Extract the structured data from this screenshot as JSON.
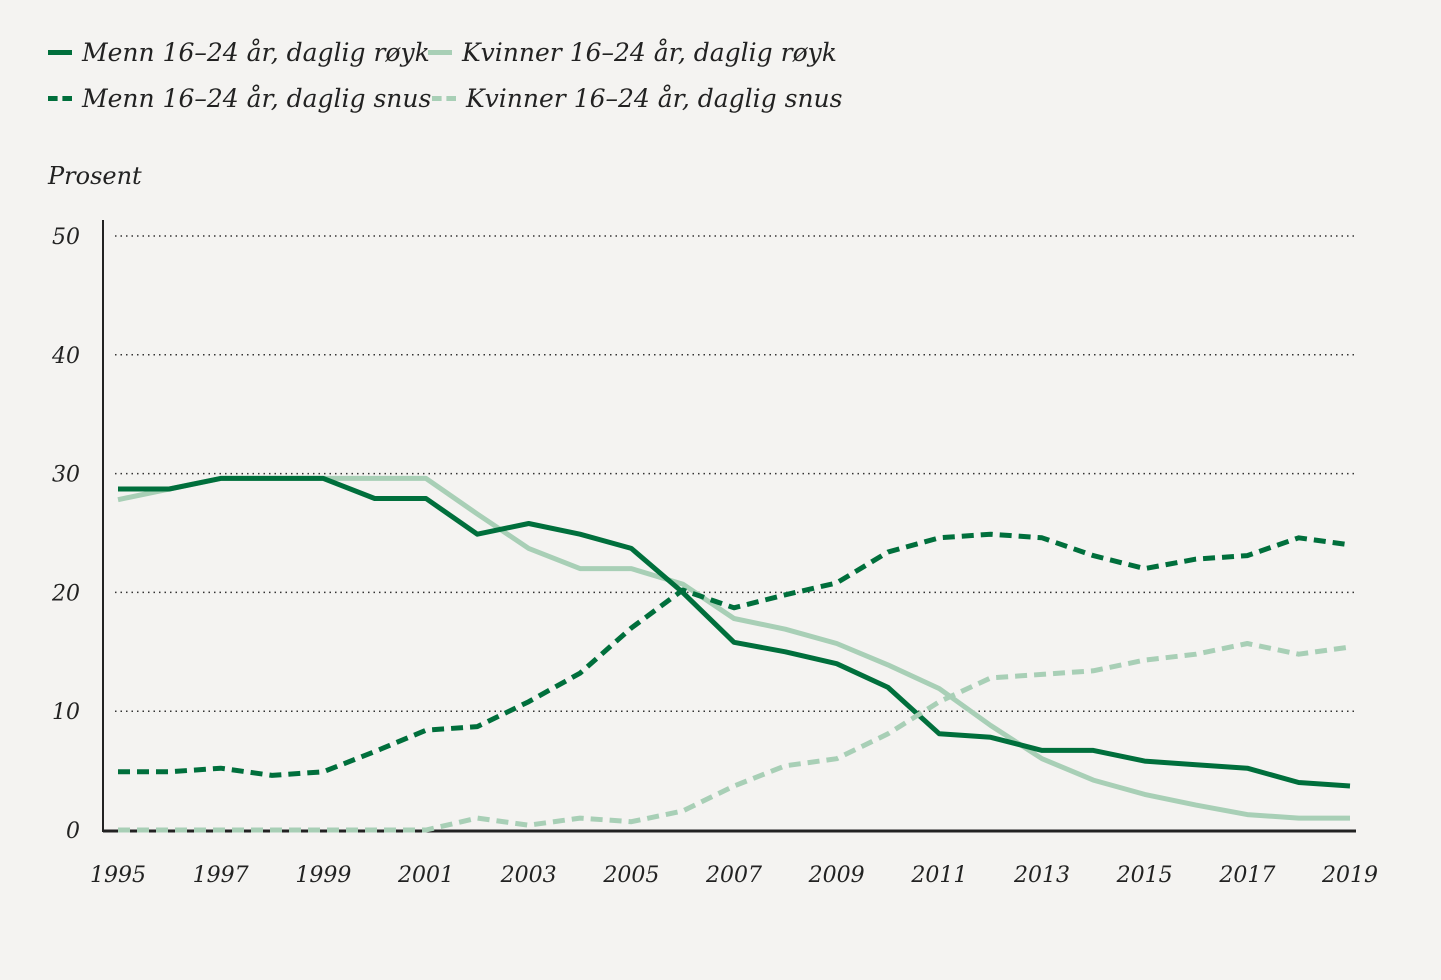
{
  "chart_data": {
    "type": "line",
    "ylabel": "Prosent",
    "ylim": [
      0,
      50
    ],
    "yticks": [
      0,
      10,
      20,
      30,
      40,
      50
    ],
    "xticks": [
      1995,
      1997,
      1999,
      2001,
      2003,
      2005,
      2007,
      2009,
      2011,
      2013,
      2015,
      2017,
      2019
    ],
    "grid": "horizontal dotted",
    "legend_position": "top-left",
    "x": [
      1995,
      1996,
      1997,
      1998,
      1999,
      2000,
      2001,
      2002,
      2003,
      2004,
      2005,
      2006,
      2007,
      2008,
      2009,
      2010,
      2011,
      2012,
      2013,
      2014,
      2015,
      2016,
      2017,
      2018,
      2019
    ],
    "series": [
      {
        "name": "Menn 16–24 år, daglig røyk",
        "color": "#006f3c",
        "style": "solid",
        "values": [
          28.7,
          28.7,
          29.6,
          29.6,
          29.6,
          27.9,
          27.9,
          24.9,
          25.8,
          24.9,
          23.7,
          20,
          15.8,
          15,
          14,
          12,
          8.1,
          7.8,
          6.7,
          6.7,
          5.8,
          5.5,
          5.2,
          4,
          3.7
        ]
      },
      {
        "name": "Kvinner 16–24 år, daglig røyk",
        "color": "#a8cfb6",
        "style": "solid",
        "values": [
          27.8,
          28.7,
          29.6,
          29.6,
          29.6,
          29.6,
          29.6,
          26.6,
          23.7,
          22,
          22,
          20.7,
          17.8,
          16.9,
          15.7,
          13.9,
          11.9,
          8.8,
          6,
          4.2,
          3,
          2.1,
          1.3,
          1,
          1
        ]
      },
      {
        "name": "Menn 16–24 år, daglig snus",
        "color": "#006f3c",
        "style": "dashed",
        "values": [
          4.9,
          4.9,
          5.2,
          4.6,
          4.9,
          6.6,
          8.4,
          8.7,
          10.8,
          13.2,
          17,
          20.2,
          18.7,
          19.8,
          20.8,
          23.4,
          24.6,
          24.9,
          24.6,
          23.1,
          22,
          22.8,
          23.1,
          24.6,
          24
        ]
      },
      {
        "name": "Kvinner 16–24 år, daglig snus",
        "color": "#a8cfb6",
        "style": "dashed",
        "values": [
          0,
          0,
          0,
          0,
          0,
          0,
          0,
          1,
          0.4,
          1,
          0.7,
          1.6,
          3.7,
          5.4,
          6,
          8.1,
          10.8,
          12.8,
          13.1,
          13.4,
          14.3,
          14.8,
          15.7,
          14.8,
          15.4
        ]
      }
    ]
  }
}
